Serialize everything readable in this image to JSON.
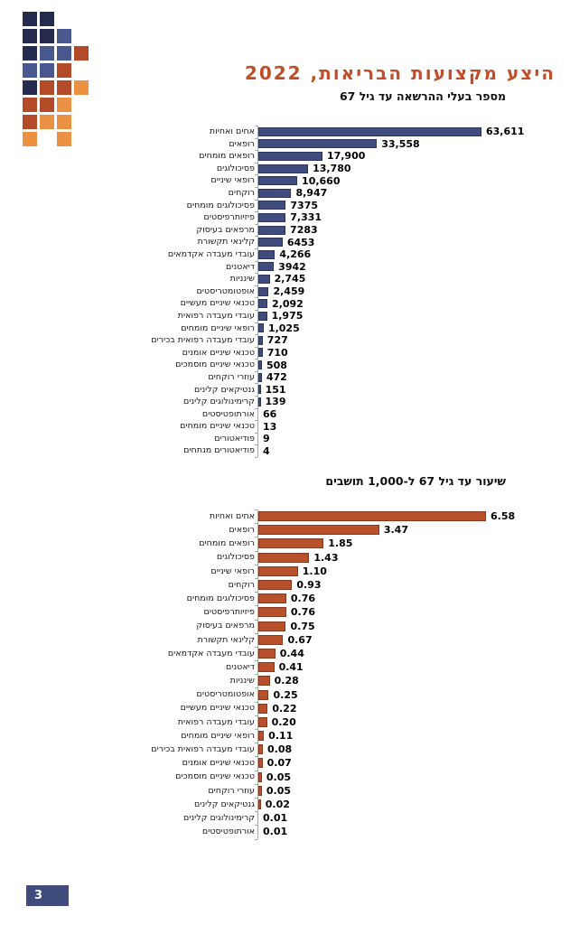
{
  "page": {
    "title": "היצע מקצועות הבריאות, 2022",
    "page_number": "3"
  },
  "colors": {
    "title_accent": "#C24E27",
    "subtitle_text": "#111111",
    "bar_blue": "#3F4C7D",
    "bar_orange": "#B9502C",
    "axis_gray": "#A9A9A9",
    "page_number_box": "#3F4C7D",
    "logo_navy": "#252B4E",
    "logo_blue": "#47598F",
    "logo_red": "#B34B28",
    "logo_orange": "#EA9143"
  },
  "logo": {
    "palette": {
      "N": "#252B4E",
      "B": "#47598F",
      "R": "#B34B28",
      "O": "#EA9143"
    },
    "rows": [
      "NN..",
      "NNB.",
      "NBBR",
      "BBR.",
      "NRRO",
      "RRO.",
      "ROO.",
      "O.O."
    ]
  },
  "chart_data": [
    {
      "type": "bar",
      "orientation": "horizontal",
      "title": "מספר בעלי ההרשאה עד גיל 67",
      "legend": false,
      "grid": false,
      "xlim": [
        0,
        67000
      ],
      "bar_color": "#3F4C7D",
      "categories": [
        "אחים ואחיות",
        "רופאים",
        "רופאים מומחים",
        "פסיכולוגים",
        "רופאי שיניים",
        "רוקחים",
        "פסיכולוגים מומחים",
        "פיזיותרפיסטים",
        "מרפאים בעיסוק",
        "קלינאי תקשורת",
        "עובדי מעבדה אקדמאים",
        "דיאטנים",
        "שינניות",
        "אופטומטריסטים",
        "טכנאי שיניים מעשיים",
        "עובדי מעבדה רפואית",
        "רופאי שיניים מומחים",
        "עובדי מעבדה רפואית בכירים",
        "טכנאי שיניים אומנים",
        "טכנאי שיניים מוסמכים",
        "עוזרי רוקחים",
        "גנטיקאים קלינים",
        "קרימינולוגים קלינים",
        "אורתופטיסטים",
        "טכנאי שיניים מומחים",
        "פודיאטורים",
        "פודיאטורים מנתחים"
      ],
      "values": [
        63611,
        33558,
        17900,
        13780,
        10660,
        8947,
        7375,
        7331,
        7283,
        6453,
        4266,
        3942,
        2745,
        2459,
        2092,
        1975,
        1025,
        727,
        710,
        508,
        472,
        151,
        139,
        66,
        13,
        9,
        4
      ],
      "value_labels": [
        "63,611",
        "33,558",
        "17,900",
        "13,780",
        "10,660",
        "8,947",
        "7375",
        "7,331",
        "7283",
        "6453",
        "4,266",
        "3942",
        "2,745",
        "2,459",
        "2,092",
        "1,975",
        "1,025",
        "727",
        "710",
        "508",
        "472",
        "151",
        "139",
        "66",
        "13",
        "9",
        "4"
      ]
    },
    {
      "type": "bar",
      "orientation": "horizontal",
      "title": "שיעור עד גיל 67 ל-1,000 תושבים",
      "legend": false,
      "grid": false,
      "xlim": [
        0,
        7
      ],
      "bar_color": "#B9502C",
      "categories": [
        "אחים ואחיות",
        "רופאים",
        "רופאים מומחים",
        "פסיכולוגים",
        "רופאי שיניים",
        "רוקחים",
        "פסיכולוגים מומחים",
        "פיזיותרפיסטים",
        "מרפאים בעיסוק",
        "קלינאי תקשורת",
        "עובדי מעבדה אקדמאים",
        "דיאטנים",
        "שינניות",
        "אופטומטריסטים",
        "טכנאי שיניים מעשיים",
        "עובדי מעבדה רפואית",
        "רופאי שיניים מומחים",
        "עובדי מעבדה רפואית בכירים",
        "טכנאי שיניים אומנים",
        "טכנאי שיניים מוסמכים",
        "עוזרי רוקחים",
        "גנטיקאים קלינים",
        "קרימינולוגים קלינים",
        "אורתופטיסטים"
      ],
      "values": [
        6.58,
        3.47,
        1.85,
        1.43,
        1.1,
        0.93,
        0.76,
        0.76,
        0.75,
        0.67,
        0.44,
        0.41,
        0.28,
        0.25,
        0.22,
        0.2,
        0.11,
        0.08,
        0.07,
        0.05,
        0.05,
        0.02,
        0.01,
        0.01
      ],
      "value_labels": [
        "6.58",
        "3.47",
        "1.85",
        "1.43",
        "1.10",
        "0.93",
        "0.76",
        "0.76",
        "0.75",
        "0.67",
        "0.44",
        "0.41",
        "0.28",
        "0.25",
        "0.22",
        "0.20",
        "0.11",
        "0.08",
        "0.07",
        "0.05",
        "0.05",
        "0.02",
        "0.01",
        "0.01"
      ]
    }
  ]
}
